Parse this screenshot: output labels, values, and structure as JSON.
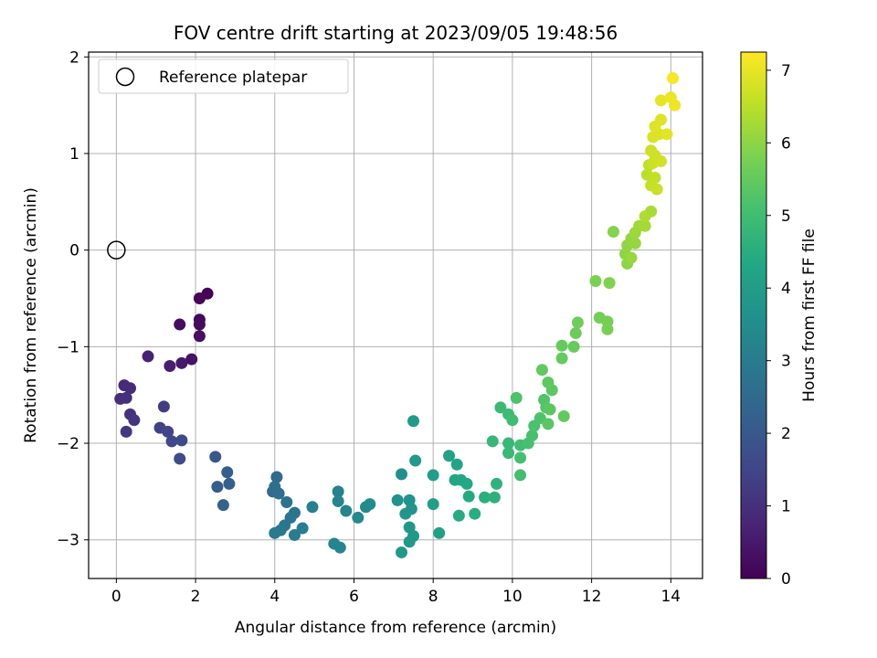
{
  "chart_data": {
    "type": "scatter",
    "title": "FOV centre drift starting at 2023/09/05 19:48:56",
    "xlabel": "Angular distance from reference (arcmin)",
    "ylabel": "Rotation from reference (arcmin)",
    "xlim": [
      -0.7,
      14.8
    ],
    "ylim": [
      -3.4,
      2.05
    ],
    "xticks": [
      "0",
      "2",
      "4",
      "6",
      "8",
      "10",
      "12",
      "14"
    ],
    "yticks": [
      "−3",
      "−2",
      "−1",
      "0",
      "1",
      "2"
    ],
    "grid": true,
    "legend": {
      "placement": "top-left",
      "entries": [
        "Reference platepar"
      ]
    },
    "reference_point": {
      "name": "Reference platepar",
      "x": 0,
      "y": 0
    },
    "colorbar": {
      "label": "Hours from first FF file",
      "range": [
        0,
        7.25
      ],
      "ticks": [
        "0",
        "1",
        "2",
        "3",
        "4",
        "5",
        "6",
        "7"
      ],
      "colormap": "viridis"
    },
    "points": [
      [
        2.3,
        -0.45,
        0.05
      ],
      [
        2.1,
        -0.5,
        0.1
      ],
      [
        2.1,
        -0.72,
        0.15
      ],
      [
        2.1,
        -0.77,
        0.2
      ],
      [
        1.6,
        -0.77,
        0.25
      ],
      [
        2.1,
        -0.89,
        0.3
      ],
      [
        1.9,
        -1.13,
        0.4
      ],
      [
        1.65,
        -1.17,
        0.5
      ],
      [
        1.35,
        -1.2,
        0.6
      ],
      [
        0.8,
        -1.1,
        0.7
      ],
      [
        0.2,
        -1.4,
        0.85
      ],
      [
        0.35,
        -1.43,
        0.9
      ],
      [
        0.1,
        -1.54,
        0.95
      ],
      [
        0.25,
        -1.53,
        1.0
      ],
      [
        0.35,
        -1.7,
        1.05
      ],
      [
        0.45,
        -1.76,
        1.1
      ],
      [
        0.25,
        -1.88,
        1.15
      ],
      [
        1.2,
        -1.62,
        1.3
      ],
      [
        1.1,
        -1.84,
        1.4
      ],
      [
        1.3,
        -1.88,
        1.5
      ],
      [
        1.4,
        -1.98,
        1.55
      ],
      [
        1.65,
        -1.97,
        1.6
      ],
      [
        1.6,
        -2.16,
        1.7
      ],
      [
        2.5,
        -2.14,
        2.0
      ],
      [
        2.55,
        -2.45,
        2.1
      ],
      [
        2.8,
        -2.3,
        2.15
      ],
      [
        2.85,
        -2.42,
        2.2
      ],
      [
        2.7,
        -2.64,
        2.25
      ],
      [
        4.05,
        -2.35,
        2.5
      ],
      [
        3.95,
        -2.5,
        2.55
      ],
      [
        4.1,
        -2.52,
        2.6
      ],
      [
        4.0,
        -2.45,
        2.65
      ],
      [
        4.3,
        -2.61,
        2.7
      ],
      [
        4.5,
        -2.72,
        2.75
      ],
      [
        4.4,
        -2.77,
        2.8
      ],
      [
        4.25,
        -2.85,
        2.85
      ],
      [
        4.15,
        -2.9,
        2.9
      ],
      [
        4.0,
        -2.93,
        2.95
      ],
      [
        4.5,
        -2.95,
        3.0
      ],
      [
        4.7,
        -2.88,
        3.05
      ],
      [
        4.95,
        -2.66,
        3.1
      ],
      [
        5.6,
        -2.5,
        3.2
      ],
      [
        5.6,
        -2.6,
        3.25
      ],
      [
        5.8,
        -2.7,
        3.3
      ],
      [
        6.1,
        -2.77,
        3.35
      ],
      [
        6.3,
        -2.66,
        3.4
      ],
      [
        6.4,
        -2.63,
        3.45
      ],
      [
        5.5,
        -3.04,
        3.25
      ],
      [
        5.65,
        -3.08,
        3.3
      ],
      [
        7.2,
        -2.32,
        3.6
      ],
      [
        7.1,
        -2.59,
        3.65
      ],
      [
        7.4,
        -2.59,
        3.7
      ],
      [
        7.45,
        -2.68,
        3.72
      ],
      [
        7.3,
        -2.73,
        3.75
      ],
      [
        7.4,
        -2.87,
        3.8
      ],
      [
        7.5,
        -2.96,
        3.85
      ],
      [
        7.4,
        -3.02,
        3.87
      ],
      [
        7.2,
        -3.13,
        3.9
      ],
      [
        7.55,
        -2.18,
        3.92
      ],
      [
        7.5,
        -1.77,
        3.95
      ],
      [
        8.0,
        -2.33,
        4.0
      ],
      [
        8.0,
        -2.63,
        4.05
      ],
      [
        8.15,
        -2.93,
        4.1
      ],
      [
        8.4,
        -2.13,
        4.15
      ],
      [
        8.6,
        -2.22,
        4.2
      ],
      [
        8.55,
        -2.38,
        4.25
      ],
      [
        8.7,
        -2.38,
        4.3
      ],
      [
        8.85,
        -2.42,
        4.35
      ],
      [
        8.9,
        -2.55,
        4.4
      ],
      [
        8.65,
        -2.75,
        4.45
      ],
      [
        9.05,
        -2.73,
        4.5
      ],
      [
        9.3,
        -2.56,
        4.55
      ],
      [
        9.55,
        -2.56,
        4.6
      ],
      [
        9.6,
        -2.42,
        4.65
      ],
      [
        9.5,
        -1.98,
        4.8
      ],
      [
        9.9,
        -2.0,
        4.82
      ],
      [
        9.9,
        -2.1,
        4.85
      ],
      [
        9.7,
        -1.63,
        4.9
      ],
      [
        9.9,
        -1.7,
        4.95
      ],
      [
        10.0,
        -1.76,
        4.98
      ],
      [
        10.2,
        -2.02,
        5.0
      ],
      [
        10.2,
        -2.33,
        5.05
      ],
      [
        10.2,
        -2.15,
        5.08
      ],
      [
        10.4,
        -2.0,
        5.1
      ],
      [
        10.5,
        -1.92,
        5.12
      ],
      [
        10.55,
        -1.82,
        5.15
      ],
      [
        10.7,
        -1.74,
        5.18
      ],
      [
        10.1,
        -1.53,
        5.2
      ],
      [
        10.8,
        -1.55,
        5.25
      ],
      [
        10.85,
        -1.63,
        5.3
      ],
      [
        10.9,
        -1.8,
        5.35
      ],
      [
        10.95,
        -1.65,
        5.38
      ],
      [
        11.0,
        -1.45,
        5.4
      ],
      [
        10.9,
        -1.37,
        5.42
      ],
      [
        10.75,
        -1.24,
        5.45
      ],
      [
        11.3,
        -1.72,
        5.48
      ],
      [
        11.25,
        -1.12,
        5.5
      ],
      [
        11.25,
        -0.99,
        5.52
      ],
      [
        11.55,
        -1.0,
        5.55
      ],
      [
        11.6,
        -0.86,
        5.6
      ],
      [
        11.65,
        -0.75,
        5.62
      ],
      [
        12.2,
        -0.7,
        5.7
      ],
      [
        12.4,
        -0.74,
        5.72
      ],
      [
        12.4,
        -0.82,
        5.75
      ],
      [
        12.1,
        -0.32,
        5.8
      ],
      [
        12.45,
        -0.34,
        5.85
      ],
      [
        12.55,
        0.19,
        5.9
      ],
      [
        12.9,
        -0.14,
        6.0
      ],
      [
        12.85,
        -0.04,
        6.02
      ],
      [
        12.9,
        0.05,
        6.05
      ],
      [
        13.0,
        0.12,
        6.08
      ],
      [
        13.1,
        0.07,
        6.1
      ],
      [
        13.0,
        -0.08,
        6.12
      ],
      [
        13.1,
        0.18,
        6.15
      ],
      [
        13.2,
        0.25,
        6.2
      ],
      [
        13.35,
        0.25,
        6.25
      ],
      [
        13.5,
        0.4,
        6.3
      ],
      [
        13.35,
        0.35,
        6.35
      ],
      [
        13.4,
        0.78,
        6.5
      ],
      [
        13.45,
        0.88,
        6.55
      ],
      [
        13.6,
        0.75,
        6.6
      ],
      [
        13.5,
        0.67,
        6.62
      ],
      [
        13.65,
        0.63,
        6.65
      ],
      [
        13.55,
        0.9,
        6.68
      ],
      [
        13.5,
        1.03,
        6.7
      ],
      [
        13.6,
        0.98,
        6.72
      ],
      [
        13.75,
        0.92,
        6.75
      ],
      [
        13.55,
        1.17,
        6.85
      ],
      [
        13.7,
        1.2,
        6.88
      ],
      [
        13.6,
        1.28,
        6.9
      ],
      [
        13.75,
        1.35,
        6.92
      ],
      [
        13.9,
        1.2,
        6.95
      ],
      [
        13.75,
        1.55,
        7.0
      ],
      [
        14.0,
        1.58,
        7.05
      ],
      [
        14.1,
        1.5,
        7.1
      ],
      [
        14.05,
        1.78,
        7.2
      ]
    ]
  }
}
